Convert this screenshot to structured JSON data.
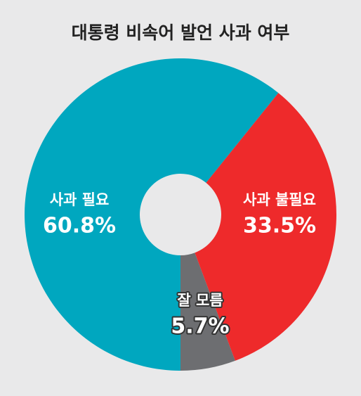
{
  "chart_data": {
    "type": "donut",
    "title": "대통령 비속어 발언 사과 여부",
    "categories": [
      "사과 필요",
      "사과 불필요",
      "잘 모름"
    ],
    "values": [
      60.8,
      33.5,
      5.7
    ],
    "value_labels": [
      "60.8%",
      "33.5%",
      "5.7%"
    ],
    "colors": [
      "#00a7bf",
      "#ee2a2b",
      "#6d6e71"
    ]
  }
}
